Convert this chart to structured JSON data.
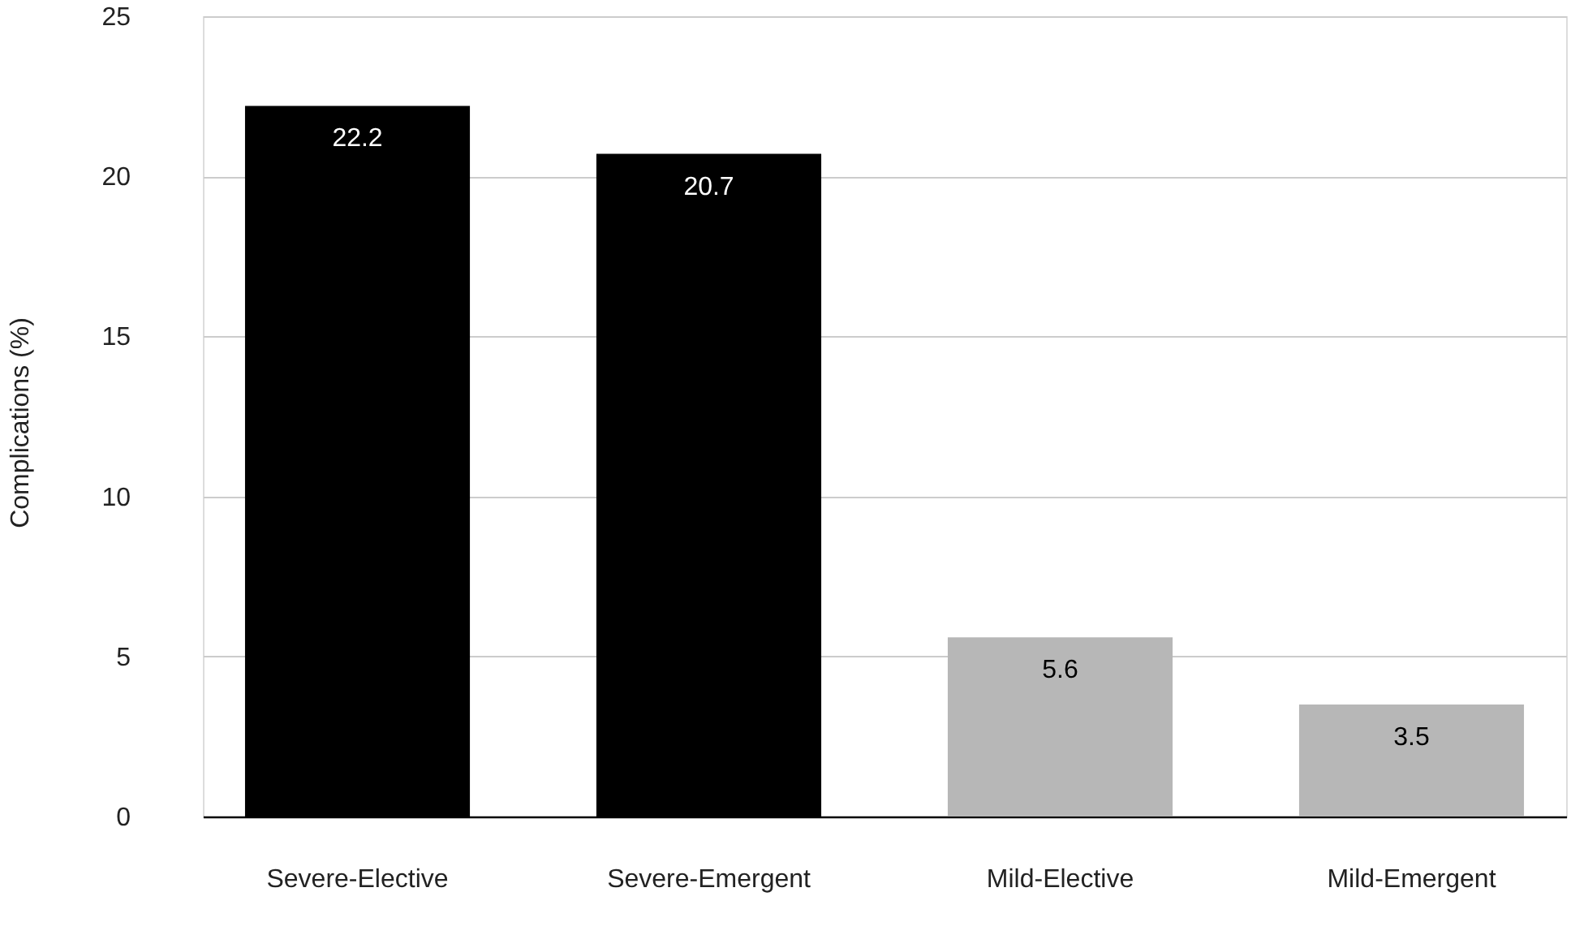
{
  "chart_data": {
    "type": "bar",
    "ylabel": "Complications (%)",
    "categories": [
      "Severe-Elective",
      "Severe-Emergent",
      "Mild-Elective",
      "Mild-Emergent"
    ],
    "values": [
      22.2,
      20.7,
      5.6,
      3.5
    ],
    "colors": [
      "#000000",
      "#000000",
      "#b7b7b7",
      "#b7b7b7"
    ],
    "ylim": [
      0,
      25
    ],
    "yticks": [
      0,
      5,
      10,
      15,
      20,
      25
    ],
    "grid": "y",
    "data_labels": true
  }
}
